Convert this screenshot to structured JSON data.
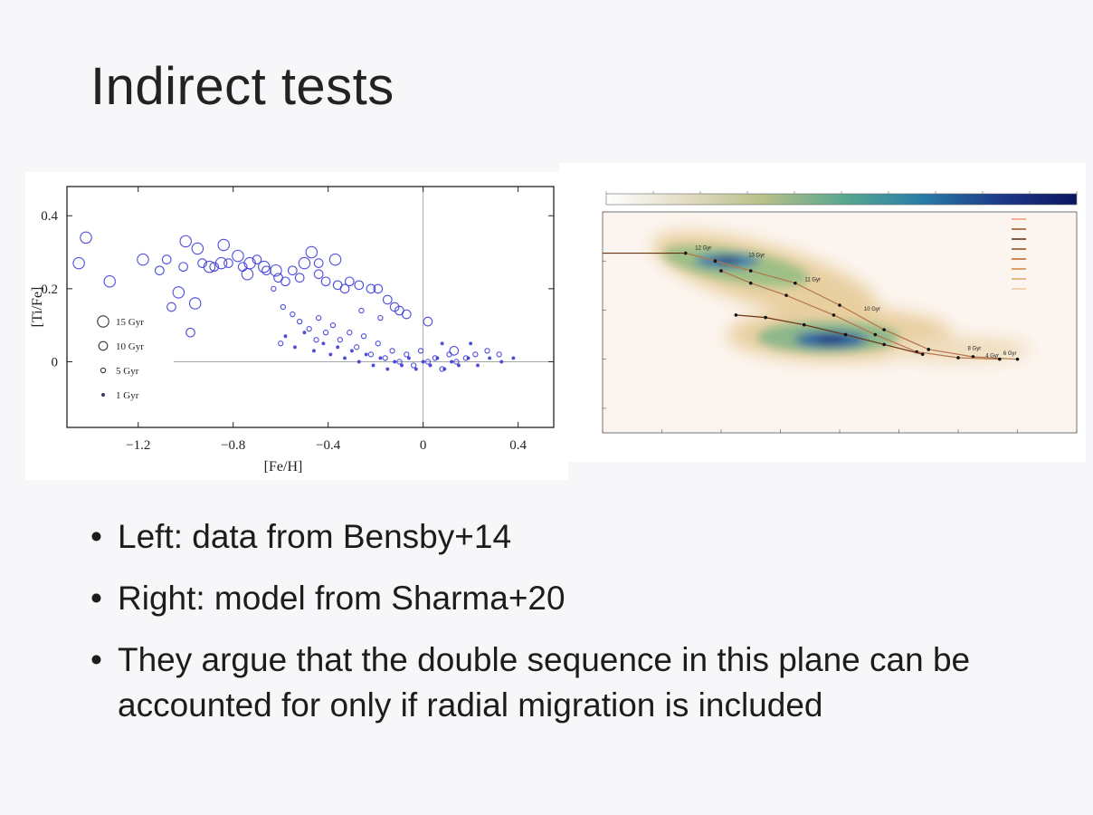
{
  "slide": {
    "title": "Indirect tests",
    "bullets": [
      "Left: data from Bensby+14",
      "Right: model from Sharma+20",
      "They argue that the double sequence in this plane can be accounted for only if radial migration is included"
    ]
  },
  "chart_data": [
    {
      "type": "scatter",
      "xlabel": "[Fe/H]",
      "ylabel": "[Ti/Fe]",
      "xlim": [
        -1.5,
        0.55
      ],
      "ylim": [
        -0.18,
        0.48
      ],
      "xticks": [
        -1.2,
        -0.8,
        -0.4,
        0,
        0.4
      ],
      "xtick_labels": [
        "−1.2",
        "−0.8",
        "−0.4",
        "0",
        "0.4"
      ],
      "yticks": [
        0,
        0.2,
        0.4
      ],
      "ytick_labels": [
        "0",
        "0.2",
        "0.4"
      ],
      "legend": {
        "placement": "left",
        "entries": [
          {
            "label": "15 Gyr",
            "age": 15
          },
          {
            "label": "10 Gyr",
            "age": 10
          },
          {
            "label": "5 Gyr",
            "age": 5
          },
          {
            "label": "1 Gyr",
            "age": 1
          }
        ]
      },
      "reference_lines": {
        "x": 0,
        "y": 0
      },
      "marker_color": "#3a3ad8",
      "series": [
        {
          "age": 15,
          "points": [
            [
              -1.42,
              0.34
            ],
            [
              -1.45,
              0.27
            ],
            [
              -1.32,
              0.22
            ],
            [
              -1.0,
              0.33
            ],
            [
              -0.95,
              0.31
            ],
            [
              -0.84,
              0.32
            ],
            [
              -0.78,
              0.29
            ],
            [
              -0.73,
              0.27
            ],
            [
              -0.67,
              0.26
            ],
            [
              -0.62,
              0.25
            ],
            [
              -0.47,
              0.3
            ],
            [
              -0.5,
              0.27
            ],
            [
              -0.37,
              0.28
            ],
            [
              -0.85,
              0.27
            ],
            [
              -0.9,
              0.26
            ],
            [
              -0.74,
              0.24
            ],
            [
              -1.18,
              0.28
            ],
            [
              -1.03,
              0.19
            ],
            [
              -0.96,
              0.16
            ]
          ]
        },
        {
          "age": 10,
          "points": [
            [
              -1.11,
              0.25
            ],
            [
              -1.08,
              0.28
            ],
            [
              -1.01,
              0.26
            ],
            [
              -0.93,
              0.27
            ],
            [
              -0.88,
              0.26
            ],
            [
              -0.82,
              0.27
            ],
            [
              -0.76,
              0.26
            ],
            [
              -0.7,
              0.28
            ],
            [
              -0.66,
              0.25
            ],
            [
              -0.61,
              0.23
            ],
            [
              -0.58,
              0.22
            ],
            [
              -0.55,
              0.25
            ],
            [
              -0.52,
              0.23
            ],
            [
              -0.44,
              0.24
            ],
            [
              -0.41,
              0.22
            ],
            [
              -0.36,
              0.21
            ],
            [
              -0.31,
              0.22
            ],
            [
              -0.27,
              0.21
            ],
            [
              -0.22,
              0.2
            ],
            [
              -0.19,
              0.2
            ],
            [
              -0.15,
              0.17
            ],
            [
              -0.12,
              0.15
            ],
            [
              -0.1,
              0.14
            ],
            [
              -0.07,
              0.13
            ],
            [
              -1.06,
              0.15
            ],
            [
              -0.98,
              0.08
            ],
            [
              -0.44,
              0.27
            ],
            [
              -0.33,
              0.2
            ],
            [
              0.02,
              0.11
            ],
            [
              0.13,
              0.03
            ]
          ]
        },
        {
          "age": 5,
          "points": [
            [
              -0.63,
              0.2
            ],
            [
              -0.59,
              0.15
            ],
            [
              -0.55,
              0.13
            ],
            [
              -0.52,
              0.11
            ],
            [
              -0.48,
              0.09
            ],
            [
              -0.44,
              0.12
            ],
            [
              -0.41,
              0.08
            ],
            [
              -0.38,
              0.1
            ],
            [
              -0.35,
              0.06
            ],
            [
              -0.31,
              0.08
            ],
            [
              -0.28,
              0.04
            ],
            [
              -0.25,
              0.07
            ],
            [
              -0.22,
              0.02
            ],
            [
              -0.19,
              0.05
            ],
            [
              -0.16,
              0.01
            ],
            [
              -0.13,
              0.03
            ],
            [
              -0.1,
              0.0
            ],
            [
              -0.07,
              0.02
            ],
            [
              -0.04,
              -0.01
            ],
            [
              -0.01,
              0.03
            ],
            [
              0.02,
              0.0
            ],
            [
              0.05,
              0.01
            ],
            [
              0.08,
              -0.02
            ],
            [
              0.11,
              0.02
            ],
            [
              0.14,
              0.0
            ],
            [
              0.18,
              0.01
            ],
            [
              0.22,
              0.02
            ],
            [
              0.27,
              0.03
            ],
            [
              0.32,
              0.02
            ],
            [
              -0.26,
              0.14
            ],
            [
              -0.18,
              0.12
            ],
            [
              -0.6,
              0.05
            ],
            [
              -0.45,
              0.06
            ]
          ]
        },
        {
          "age": 1,
          "points": [
            [
              -0.58,
              0.07
            ],
            [
              -0.54,
              0.04
            ],
            [
              -0.5,
              0.08
            ],
            [
              -0.46,
              0.03
            ],
            [
              -0.42,
              0.05
            ],
            [
              -0.39,
              0.02
            ],
            [
              -0.36,
              0.04
            ],
            [
              -0.33,
              0.01
            ],
            [
              -0.3,
              0.03
            ],
            [
              -0.27,
              0.0
            ],
            [
              -0.24,
              0.02
            ],
            [
              -0.21,
              -0.01
            ],
            [
              -0.18,
              0.01
            ],
            [
              -0.15,
              -0.02
            ],
            [
              -0.12,
              0.0
            ],
            [
              -0.09,
              -0.01
            ],
            [
              -0.06,
              0.01
            ],
            [
              -0.03,
              -0.02
            ],
            [
              0.0,
              0.0
            ],
            [
              0.03,
              -0.01
            ],
            [
              0.06,
              0.01
            ],
            [
              0.09,
              -0.02
            ],
            [
              0.12,
              0.0
            ],
            [
              0.15,
              -0.01
            ],
            [
              0.19,
              0.01
            ],
            [
              0.23,
              -0.01
            ],
            [
              0.28,
              0.01
            ],
            [
              0.33,
              0.0
            ],
            [
              0.38,
              0.01
            ],
            [
              0.08,
              0.05
            ],
            [
              0.2,
              0.05
            ]
          ]
        }
      ]
    },
    {
      "type": "heatmap",
      "colorbar": {
        "colors": [
          "#ffffff",
          "#e3dcc5",
          "#b9c089",
          "#5aa98f",
          "#2a7fa6",
          "#1c3a8a",
          "#0c1560"
        ],
        "ticks": [
          0.0,
          0.1,
          0.2,
          0.3,
          0.4,
          0.5,
          0.6,
          0.7,
          0.8,
          0.9,
          1.0
        ]
      },
      "xlim": [
        -1.0,
        0.6
      ],
      "ylim": [
        -0.15,
        0.3
      ],
      "xticks": [
        -1.0,
        -0.8,
        -0.6,
        -0.4,
        -0.2,
        0.0,
        0.2,
        0.4,
        0.6
      ],
      "yticks": [
        -0.1,
        0.0,
        0.1,
        0.2,
        0.3
      ],
      "density_peaks": [
        {
          "x": -0.58,
          "y": 0.2,
          "weight": 0.9
        },
        {
          "x": -0.23,
          "y": 0.04,
          "weight": 1.0
        }
      ],
      "track_labels": [
        "12 Gyr",
        "13 Gyr",
        "11 Gyr",
        "10 Gyr",
        "8 Gyr",
        "6 Gyr",
        "4 Gyr"
      ],
      "tracks": [
        [
          [
            -0.72,
            0.216
          ],
          [
            -0.62,
            0.2
          ],
          [
            -0.5,
            0.18
          ],
          [
            -0.35,
            0.155
          ],
          [
            -0.2,
            0.11
          ],
          [
            -0.05,
            0.06
          ],
          [
            0.1,
            0.02
          ],
          [
            0.25,
            0.005
          ],
          [
            0.4,
            0.0
          ]
        ],
        [
          [
            -0.6,
            0.18
          ],
          [
            -0.5,
            0.155
          ],
          [
            -0.38,
            0.13
          ],
          [
            -0.22,
            0.09
          ],
          [
            -0.08,
            0.05
          ],
          [
            0.06,
            0.015
          ],
          [
            0.2,
            0.003
          ],
          [
            0.34,
            0.0
          ]
        ],
        [
          [
            -0.55,
            0.09
          ],
          [
            -0.45,
            0.085
          ],
          [
            -0.32,
            0.07
          ],
          [
            -0.18,
            0.05
          ],
          [
            -0.05,
            0.03
          ],
          [
            0.08,
            0.01
          ]
        ]
      ],
      "legend": {
        "placement": "top-right",
        "entries": [
          {
            "r": "1",
            "color": "#f2a07a"
          },
          {
            "r": "2",
            "color": "#a35a2b"
          },
          {
            "r": "4",
            "color": "#6b3312"
          },
          {
            "r": "5",
            "color": "#8f5628"
          },
          {
            "r": "6",
            "color": "#c06a2a"
          },
          {
            "r": "10",
            "color": "#d58b4a"
          },
          {
            "r": "12",
            "color": "#e3a86f"
          },
          {
            "r": "14",
            "color": "#efc99c"
          }
        ]
      }
    }
  ]
}
